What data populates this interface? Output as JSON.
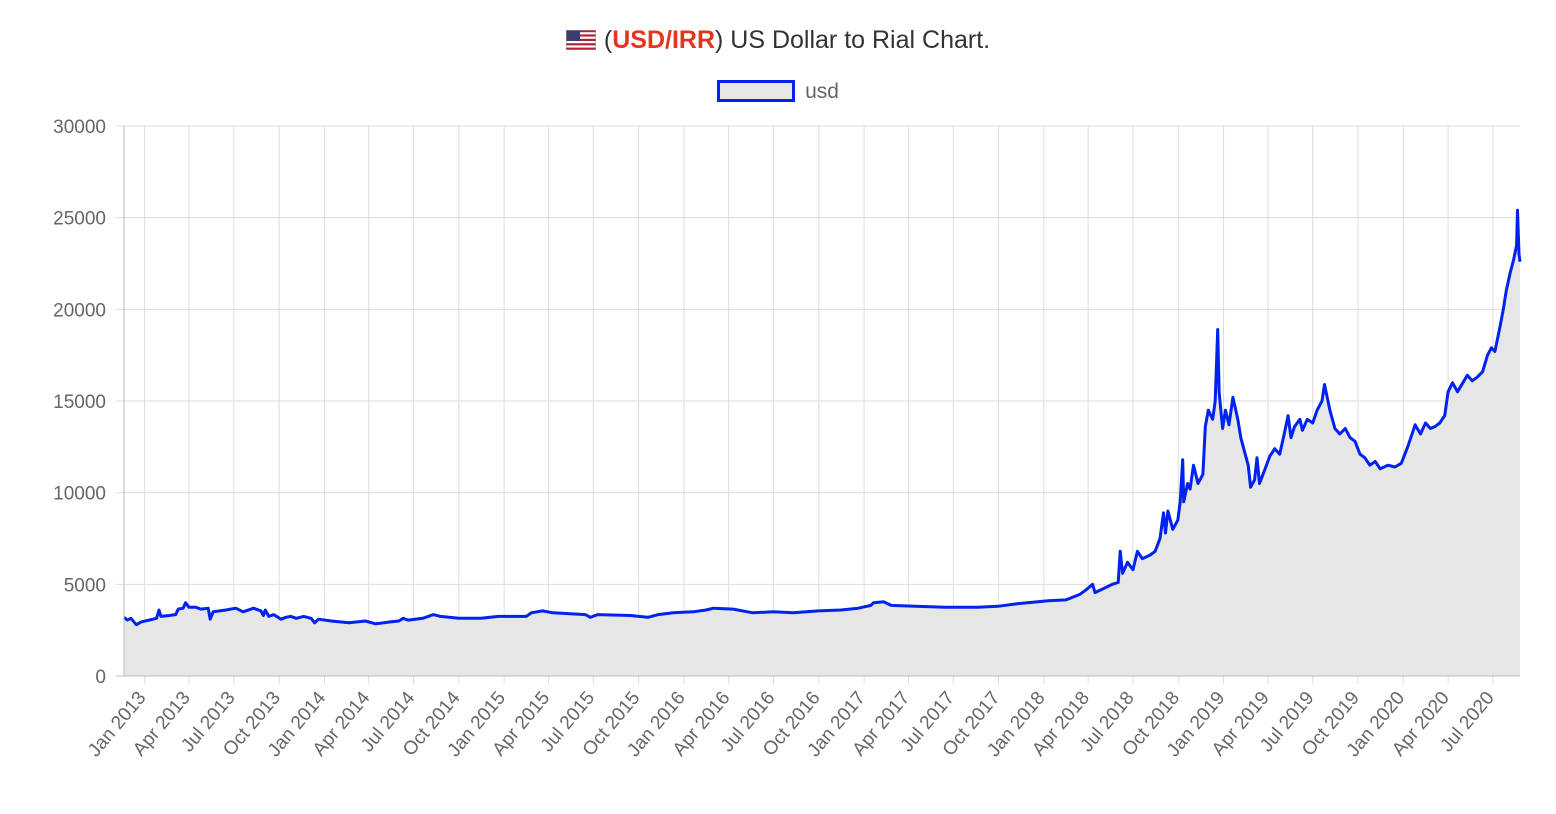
{
  "chart_data": {
    "type": "area",
    "title": {
      "open_paren": "(",
      "pair": "USD/IRR",
      "rest": ") US Dollar to Rial Chart.",
      "pair_color": "#e8331f",
      "flag_icon": "us-flag-icon"
    },
    "xlabel": "",
    "ylabel": "",
    "ylim": [
      0,
      30000
    ],
    "yticks": [
      0,
      5000,
      10000,
      15000,
      20000,
      25000,
      30000
    ],
    "x_range": [
      "2012-11-20",
      "2020-08-25"
    ],
    "grid": true,
    "legend_position": "top",
    "xtick_labels": [
      "Jan 2013",
      "Apr 2013",
      "Jul 2013",
      "Oct 2013",
      "Jan 2014",
      "Apr 2014",
      "Jul 2014",
      "Oct 2014",
      "Jan 2015",
      "Apr 2015",
      "Jul 2015",
      "Oct 2015",
      "Jan 2016",
      "Apr 2016",
      "Jul 2016",
      "Oct 2016",
      "Jan 2017",
      "Apr 2017",
      "Jul 2017",
      "Oct 2017",
      "Jan 2018",
      "Apr 2018",
      "Jul 2018",
      "Oct 2018",
      "Jan 2019",
      "Apr 2019",
      "Jul 2019",
      "Oct 2019",
      "Jan 2020",
      "Apr 2020",
      "Jul 2020"
    ],
    "xtick_dates": [
      "2013-01-01",
      "2013-04-01",
      "2013-07-01",
      "2013-10-01",
      "2014-01-01",
      "2014-04-01",
      "2014-07-01",
      "2014-10-01",
      "2015-01-01",
      "2015-04-01",
      "2015-07-01",
      "2015-10-01",
      "2016-01-01",
      "2016-04-01",
      "2016-07-01",
      "2016-10-01",
      "2017-01-01",
      "2017-04-01",
      "2017-07-01",
      "2017-10-01",
      "2018-01-01",
      "2018-04-01",
      "2018-07-01",
      "2018-10-01",
      "2019-01-01",
      "2019-04-01",
      "2019-07-01",
      "2019-10-01",
      "2020-01-01",
      "2020-04-01",
      "2020-07-01"
    ],
    "series": [
      {
        "name": "usd",
        "line_color": "#0022ee",
        "fill_color": "#e6e6e6",
        "points": [
          [
            "2012-11-20",
            3200
          ],
          [
            "2012-11-27",
            3050
          ],
          [
            "2012-12-04",
            3150
          ],
          [
            "2012-12-15",
            2800
          ],
          [
            "2012-12-25",
            2950
          ],
          [
            "2013-01-10",
            3050
          ],
          [
            "2013-01-25",
            3150
          ],
          [
            "2013-01-30",
            3600
          ],
          [
            "2013-02-03",
            3250
          ],
          [
            "2013-02-20",
            3300
          ],
          [
            "2013-03-05",
            3350
          ],
          [
            "2013-03-10",
            3650
          ],
          [
            "2013-03-20",
            3700
          ],
          [
            "2013-03-25",
            4000
          ],
          [
            "2013-04-01",
            3750
          ],
          [
            "2013-04-15",
            3750
          ],
          [
            "2013-04-25",
            3650
          ],
          [
            "2013-05-10",
            3700
          ],
          [
            "2013-05-14",
            3100
          ],
          [
            "2013-05-20",
            3500
          ],
          [
            "2013-06-15",
            3600
          ],
          [
            "2013-07-05",
            3700
          ],
          [
            "2013-07-20",
            3500
          ],
          [
            "2013-08-10",
            3700
          ],
          [
            "2013-08-25",
            3550
          ],
          [
            "2013-08-30",
            3300
          ],
          [
            "2013-09-03",
            3600
          ],
          [
            "2013-09-10",
            3250
          ],
          [
            "2013-09-20",
            3350
          ],
          [
            "2013-10-05",
            3100
          ],
          [
            "2013-10-15",
            3200
          ],
          [
            "2013-10-25",
            3250
          ],
          [
            "2013-11-05",
            3150
          ],
          [
            "2013-11-20",
            3250
          ],
          [
            "2013-12-05",
            3150
          ],
          [
            "2013-12-12",
            2900
          ],
          [
            "2013-12-20",
            3100
          ],
          [
            "2014-01-15",
            3000
          ],
          [
            "2014-02-20",
            2900
          ],
          [
            "2014-03-25",
            3000
          ],
          [
            "2014-04-15",
            2850
          ],
          [
            "2014-05-15",
            2950
          ],
          [
            "2014-06-01",
            3000
          ],
          [
            "2014-06-10",
            3150
          ],
          [
            "2014-06-20",
            3050
          ],
          [
            "2014-07-20",
            3150
          ],
          [
            "2014-08-10",
            3350
          ],
          [
            "2014-08-25",
            3250
          ],
          [
            "2014-10-01",
            3150
          ],
          [
            "2014-11-15",
            3150
          ],
          [
            "2014-12-20",
            3250
          ],
          [
            "2015-01-30",
            3250
          ],
          [
            "2015-02-15",
            3250
          ],
          [
            "2015-02-25",
            3450
          ],
          [
            "2015-03-20",
            3550
          ],
          [
            "2015-04-10",
            3450
          ],
          [
            "2015-06-15",
            3350
          ],
          [
            "2015-06-25",
            3200
          ],
          [
            "2015-07-10",
            3350
          ],
          [
            "2015-09-15",
            3300
          ],
          [
            "2015-10-20",
            3200
          ],
          [
            "2015-11-10",
            3350
          ],
          [
            "2015-12-10",
            3450
          ],
          [
            "2016-01-20",
            3500
          ],
          [
            "2016-02-15",
            3600
          ],
          [
            "2016-03-01",
            3700
          ],
          [
            "2016-04-10",
            3650
          ],
          [
            "2016-05-20",
            3450
          ],
          [
            "2016-07-01",
            3500
          ],
          [
            "2016-08-10",
            3450
          ],
          [
            "2016-09-30",
            3550
          ],
          [
            "2016-11-15",
            3600
          ],
          [
            "2016-12-20",
            3700
          ],
          [
            "2017-01-15",
            3850
          ],
          [
            "2017-01-20",
            4000
          ],
          [
            "2017-02-10",
            4050
          ],
          [
            "2017-02-25",
            3850
          ],
          [
            "2017-04-15",
            3800
          ],
          [
            "2017-06-15",
            3750
          ],
          [
            "2017-08-20",
            3750
          ],
          [
            "2017-09-30",
            3800
          ],
          [
            "2017-11-10",
            3950
          ],
          [
            "2017-12-20",
            4050
          ],
          [
            "2018-01-10",
            4100
          ],
          [
            "2018-02-15",
            4150
          ],
          [
            "2018-03-15",
            4450
          ],
          [
            "2018-03-30",
            4750
          ],
          [
            "2018-04-10",
            5000
          ],
          [
            "2018-04-15",
            4550
          ],
          [
            "2018-05-20",
            5000
          ],
          [
            "2018-06-01",
            5100
          ],
          [
            "2018-06-05",
            6800
          ],
          [
            "2018-06-10",
            5600
          ],
          [
            "2018-06-20",
            6200
          ],
          [
            "2018-07-01",
            5800
          ],
          [
            "2018-07-10",
            6800
          ],
          [
            "2018-07-20",
            6400
          ],
          [
            "2018-08-05",
            6600
          ],
          [
            "2018-08-15",
            6800
          ],
          [
            "2018-08-25",
            7500
          ],
          [
            "2018-09-01",
            8900
          ],
          [
            "2018-09-05",
            7800
          ],
          [
            "2018-09-10",
            9000
          ],
          [
            "2018-09-20",
            8000
          ],
          [
            "2018-09-30",
            8500
          ],
          [
            "2018-10-05",
            9500
          ],
          [
            "2018-10-10",
            11800
          ],
          [
            "2018-10-12",
            9500
          ],
          [
            "2018-10-20",
            10500
          ],
          [
            "2018-10-25",
            10200
          ],
          [
            "2018-11-01",
            11500
          ],
          [
            "2018-11-10",
            10500
          ],
          [
            "2018-11-20",
            11000
          ],
          [
            "2018-11-25",
            13600
          ],
          [
            "2018-12-01",
            14500
          ],
          [
            "2018-12-10",
            14000
          ],
          [
            "2018-12-15",
            15000
          ],
          [
            "2018-12-20",
            18900
          ],
          [
            "2018-12-23",
            15500
          ],
          [
            "2018-12-30",
            13500
          ],
          [
            "2019-01-05",
            14500
          ],
          [
            "2019-01-12",
            13700
          ],
          [
            "2019-01-20",
            15200
          ],
          [
            "2019-01-30",
            14000
          ],
          [
            "2019-02-05",
            13000
          ],
          [
            "2019-02-15",
            12000
          ],
          [
            "2019-02-20",
            11500
          ],
          [
            "2019-02-25",
            10300
          ],
          [
            "2019-03-05",
            10700
          ],
          [
            "2019-03-10",
            11900
          ],
          [
            "2019-03-15",
            10500
          ],
          [
            "2019-03-25",
            11200
          ],
          [
            "2019-04-05",
            12000
          ],
          [
            "2019-04-15",
            12400
          ],
          [
            "2019-04-25",
            12100
          ],
          [
            "2019-05-05",
            13300
          ],
          [
            "2019-05-12",
            14200
          ],
          [
            "2019-05-18",
            13000
          ],
          [
            "2019-05-25",
            13600
          ],
          [
            "2019-06-05",
            14000
          ],
          [
            "2019-06-10",
            13400
          ],
          [
            "2019-06-20",
            14000
          ],
          [
            "2019-07-01",
            13800
          ],
          [
            "2019-07-10",
            14500
          ],
          [
            "2019-07-20",
            15000
          ],
          [
            "2019-07-25",
            15900
          ],
          [
            "2019-08-05",
            14500
          ],
          [
            "2019-08-15",
            13500
          ],
          [
            "2019-08-25",
            13200
          ],
          [
            "2019-09-05",
            13500
          ],
          [
            "2019-09-15",
            13000
          ],
          [
            "2019-09-25",
            12800
          ],
          [
            "2019-10-05",
            12100
          ],
          [
            "2019-10-15",
            11900
          ],
          [
            "2019-10-25",
            11500
          ],
          [
            "2019-11-05",
            11700
          ],
          [
            "2019-11-15",
            11300
          ],
          [
            "2019-12-01",
            11500
          ],
          [
            "2019-12-15",
            11400
          ],
          [
            "2019-12-28",
            11600
          ],
          [
            "2020-01-10",
            12500
          ],
          [
            "2020-01-20",
            13300
          ],
          [
            "2020-01-25",
            13700
          ],
          [
            "2020-02-05",
            13200
          ],
          [
            "2020-02-15",
            13800
          ],
          [
            "2020-02-25",
            13500
          ],
          [
            "2020-03-05",
            13600
          ],
          [
            "2020-03-15",
            13800
          ],
          [
            "2020-03-25",
            14200
          ],
          [
            "2020-04-01",
            15500
          ],
          [
            "2020-04-10",
            16000
          ],
          [
            "2020-04-20",
            15500
          ],
          [
            "2020-05-01",
            16000
          ],
          [
            "2020-05-10",
            16400
          ],
          [
            "2020-05-20",
            16100
          ],
          [
            "2020-05-30",
            16300
          ],
          [
            "2020-06-10",
            16600
          ],
          [
            "2020-06-20",
            17500
          ],
          [
            "2020-06-28",
            17900
          ],
          [
            "2020-07-05",
            17700
          ],
          [
            "2020-07-15",
            19000
          ],
          [
            "2020-07-22",
            20000
          ],
          [
            "2020-07-28",
            21000
          ],
          [
            "2020-08-05",
            22000
          ],
          [
            "2020-08-12",
            22700
          ],
          [
            "2020-08-18",
            23500
          ],
          [
            "2020-08-20",
            25400
          ],
          [
            "2020-08-23",
            23000
          ],
          [
            "2020-08-25",
            22600
          ]
        ]
      }
    ]
  }
}
